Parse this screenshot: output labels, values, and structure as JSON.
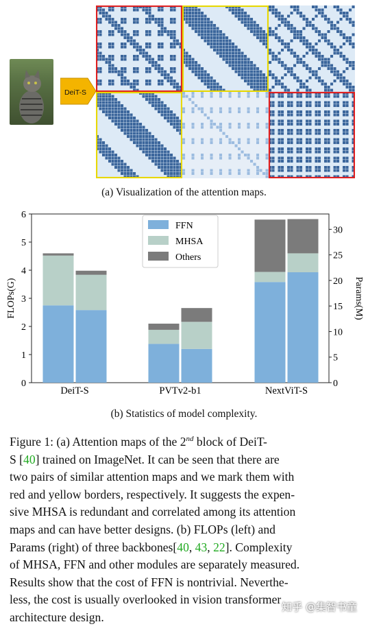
{
  "attention_panel": {
    "caption": "(a) Visualization of the attention maps.",
    "model_tag": "DeiT-S",
    "highlight_colors": {
      "red": "#e02020",
      "yellow": "#e8d800"
    },
    "map_colors": {
      "dark": "#1f4f8c",
      "light": "#ddeaf6"
    }
  },
  "chart_data": {
    "type": "bar",
    "categories": [
      "DeiT-S",
      "PVTv2-b1",
      "NextViT-S"
    ],
    "bar_pairs": [
      "FLOPs",
      "Params"
    ],
    "series": [
      {
        "name": "FFN",
        "color": "#7eb0db",
        "flops": [
          2.75,
          1.38,
          3.58
        ],
        "params": [
          14.2,
          6.6,
          21.6
        ]
      },
      {
        "name": "MHSA",
        "color": "#b8d0c8",
        "flops": [
          1.77,
          0.5,
          0.36
        ],
        "params": [
          6.9,
          5.3,
          3.7
        ]
      },
      {
        "name": "Others",
        "color": "#7b7b7b",
        "flops": [
          0.08,
          0.22,
          1.86
        ],
        "params": [
          0.8,
          2.7,
          6.7
        ]
      }
    ],
    "ylabel_left": "FLOPs(G)",
    "ylabel_right": "Params(M)",
    "ylim_left": [
      0,
      6
    ],
    "ylim_right": [
      0,
      33
    ],
    "yticks_left": [
      "0",
      "1",
      "2",
      "3",
      "4",
      "5",
      "6"
    ],
    "yticks_right": [
      "0",
      "5",
      "10",
      "15",
      "20",
      "25",
      "30"
    ],
    "legend_position": "top-center",
    "caption": "(b) Statistics of model complexity."
  },
  "figure_text": {
    "l1a": "Figure 1:  (a) Attention maps of the 2",
    "l1sup": "nd",
    "l1b": " block of DeiT-",
    "l2a": "S [",
    "cite40": "40",
    "l2b": "] trained on ImageNet.  It can be seen that there are",
    "l3": "two pairs of similar attention maps and we mark them with",
    "l4": "red and yellow borders, respectively. It suggests the expen-",
    "l5": "sive MHSA is redundant and correlated among its attention",
    "l6": "maps and can have better designs.  (b) FLOPs (left) and",
    "l7a": "Params (right) of three backbones[",
    "c40": "40",
    "c43": "43",
    "c22": "22",
    "sep": ", ",
    "l7b": "].  Complexity",
    "l8": "of MHSA, FFN and other modules are separately measured.",
    "l9": "Results show that the cost of FFN is nontrivial.  Neverthe-",
    "l10": "less, the cost is usually overlooked in vision transformer",
    "l11": "architecture design."
  },
  "watermark": "知乎 @集智书童"
}
